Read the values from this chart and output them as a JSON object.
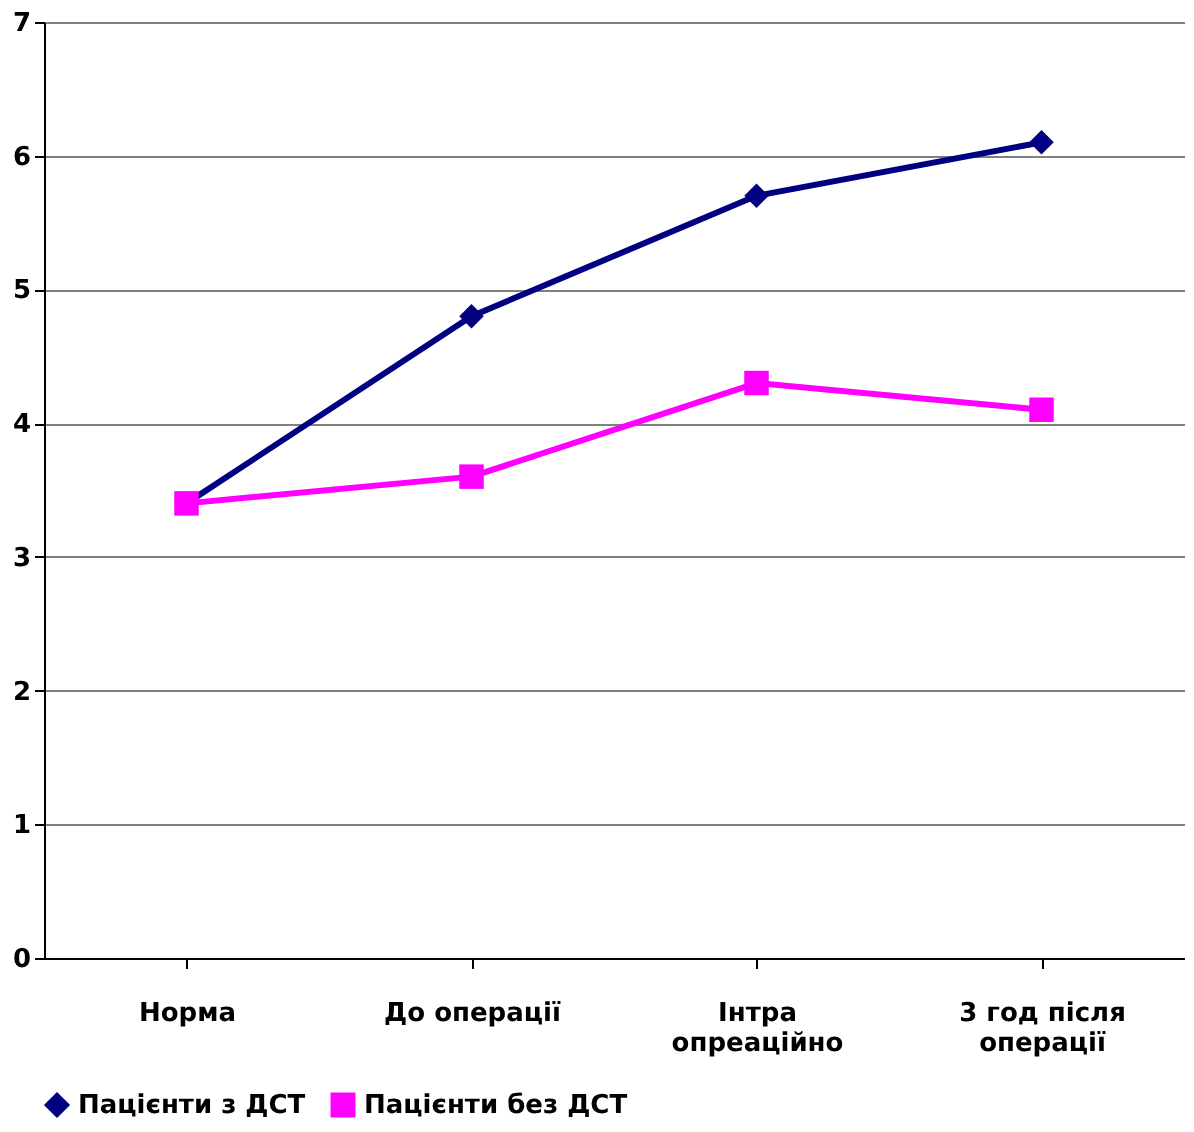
{
  "chart_data": {
    "type": "line",
    "categories": [
      "Норма",
      "До операції",
      "Інтра\nопреаційно",
      "3 год після\nоперації"
    ],
    "series": [
      {
        "name": "Пацієнти з ДСТ",
        "color": "#000080",
        "marker": "diamond",
        "values": [
          3.4,
          4.8,
          5.7,
          6.1
        ]
      },
      {
        "name": "Пацієнти без ДСТ",
        "color": "#ff00ff",
        "marker": "square",
        "values": [
          3.4,
          3.6,
          4.3,
          4.1
        ]
      }
    ],
    "ylim": [
      0,
      7
    ],
    "yticks": [
      0,
      1,
      2,
      3,
      4,
      5,
      6,
      7
    ],
    "grid": "y",
    "legend": "bottom",
    "line_style": "solid"
  }
}
